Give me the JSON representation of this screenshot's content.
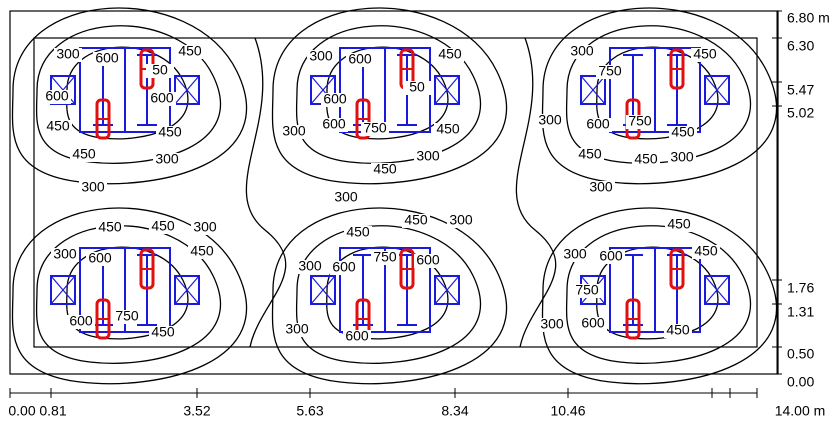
{
  "x_scale": {
    "unit_ticks": [
      "0.00",
      "0.81",
      "3.52",
      "5.63",
      "8.34",
      "10.46",
      "14.00 m"
    ]
  },
  "y_scale": {
    "unit_ticks": [
      "0.00",
      "0.50",
      "1.31",
      "1.76",
      "5.02",
      "5.47",
      "6.30",
      "6.80 m"
    ]
  },
  "contour_labels": [
    "300",
    "600",
    "450",
    "50",
    "600",
    "600",
    "450",
    "450",
    "450",
    "300",
    "300",
    "300",
    "300",
    "600",
    "450",
    "50",
    "600",
    "300",
    "600",
    "750",
    "450",
    "450",
    "300",
    "300",
    "750",
    "450",
    "300",
    "600",
    "750",
    "450",
    "450",
    "450",
    "300",
    "300",
    "450",
    "450",
    "300",
    "300",
    "600",
    "450",
    "600",
    "750",
    "450",
    "450",
    "450",
    "300",
    "300",
    "600",
    "750",
    "600",
    "300",
    "600",
    "450",
    "300",
    "600",
    "450",
    "750",
    "300",
    "600",
    "450"
  ]
}
